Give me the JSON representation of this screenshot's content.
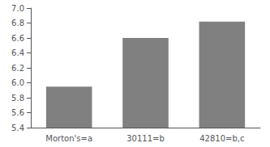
{
  "chart_data": {
    "type": "bar",
    "categories": [
      "Morton's=a",
      "30111=b",
      "42810=b,c"
    ],
    "values": [
      5.95,
      6.6,
      6.82
    ],
    "color": "#808080",
    "ylim": [
      5.4,
      7.0
    ],
    "yticks": [
      5.4,
      5.6,
      5.8,
      {
        "value": 6.0,
        "label": "6.0"
      },
      6.2,
      6.4,
      6.6,
      6.8,
      {
        "value": 7.0,
        "label": "7.0"
      }
    ],
    "grid": false
  }
}
